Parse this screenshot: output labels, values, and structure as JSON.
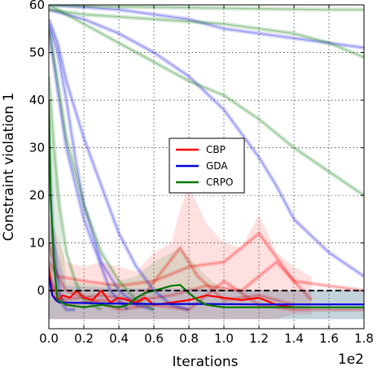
{
  "chart_data": {
    "type": "line",
    "xlabel": "Iterations",
    "ylabel": "Constraint violation 1",
    "x_scale_label": "1e2",
    "xlim": [
      0,
      1.8
    ],
    "ylim": [
      -8,
      60
    ],
    "xticks": [
      "0.0",
      "0.2",
      "0.4",
      "0.6",
      "0.8",
      "1.0",
      "1.2",
      "1.4",
      "1.6",
      "1.8"
    ],
    "yticks": [
      "0",
      "10",
      "20",
      "30",
      "40",
      "50",
      "60"
    ],
    "grid": true,
    "legend_position": "center",
    "reference_line": {
      "y": 0,
      "style": "dashed",
      "color": "#000000"
    },
    "series": [
      {
        "name": "CBP",
        "color": "#ff0000",
        "mean": {
          "x": [
            0,
            0.02,
            0.05,
            0.08,
            0.12,
            0.16,
            0.2,
            0.25,
            0.3,
            0.35,
            0.4,
            0.45,
            0.5,
            0.55,
            0.6,
            0.7,
            0.8,
            0.9,
            1.0,
            1.1,
            1.2,
            1.3,
            1.4
          ],
          "y": [
            5,
            -1,
            -2,
            -1,
            -1.5,
            0,
            -1.5,
            -2,
            0,
            -2.5,
            -1.5,
            -2,
            -2.5,
            -1.5,
            -3,
            -2.5,
            -2,
            -1,
            -1.5,
            -2,
            -1.5,
            -3,
            -3.5
          ]
        },
        "band": {
          "x": [
            0,
            0.1,
            0.2,
            0.3,
            0.4,
            0.5,
            0.6,
            0.7,
            0.75,
            0.8,
            0.9,
            1.0,
            1.1,
            1.2,
            1.3,
            1.4,
            1.5
          ],
          "upper": [
            16,
            6,
            5,
            6,
            5,
            4,
            8,
            10,
            17,
            22,
            14,
            10,
            9,
            16,
            8,
            5,
            3
          ],
          "lower": [
            -6,
            -6,
            -6,
            -6,
            -6,
            -6,
            -6,
            -6,
            -6,
            -6,
            -6,
            -6,
            -6,
            -6,
            -6,
            -5,
            -5
          ]
        },
        "runs": [
          {
            "x": [
              0,
              0.05,
              0.2,
              0.4,
              0.6,
              0.8,
              1.0,
              1.2,
              1.4,
              1.8
            ],
            "y": [
              10,
              3,
              2,
              1,
              2,
              5,
              6,
              12,
              2,
              0
            ]
          },
          {
            "x": [
              0,
              0.05,
              0.3,
              0.5,
              0.7,
              0.9,
              1.1,
              1.3,
              1.5
            ],
            "y": [
              4,
              -2,
              -1,
              -2,
              -1,
              1,
              0,
              6,
              -2
            ]
          },
          {
            "x": [
              0,
              0.1,
              0.3,
              0.5,
              0.75,
              0.85,
              1.0,
              1.2,
              1.4
            ],
            "y": [
              2,
              -3,
              -2,
              -3,
              9,
              3,
              -2,
              -1,
              -3
            ]
          },
          {
            "x": [
              0,
              0.1,
              0.4,
              0.6,
              0.8,
              1.0,
              1.2,
              1.4,
              1.6,
              1.8
            ],
            "y": [
              6,
              0,
              -4,
              -3,
              -4,
              2,
              -3,
              -4,
              -4,
              -4
            ]
          }
        ]
      },
      {
        "name": "GDA",
        "color": "#0000dd",
        "mean": {
          "x": [
            0,
            0.02,
            0.04,
            0.06,
            0.1,
            0.3,
            0.6,
            0.9,
            1.2,
            1.5,
            1.8
          ],
          "y": [
            3,
            -1,
            -2,
            -2.5,
            -2.5,
            -2.7,
            -2.8,
            -2.8,
            -2.9,
            -2.9,
            -2.9
          ]
        },
        "band": {
          "x": [
            0,
            0.1,
            0.4,
            0.8,
            1.2,
            1.6,
            1.8
          ],
          "upper": [
            15,
            1,
            0.5,
            0.5,
            0,
            0,
            0
          ],
          "lower": [
            -6,
            -6,
            -6,
            -6,
            -6,
            -6,
            -6
          ]
        },
        "runs": [
          {
            "x": [
              0,
              0.2,
              0.4,
              0.6,
              0.8,
              1.0,
              1.2,
              1.4,
              1.6,
              1.8
            ],
            "y": [
              60,
              59.5,
              59,
              58,
              57,
              55,
              54,
              53,
              52,
              51
            ]
          },
          {
            "x": [
              0,
              0.2,
              0.4,
              0.6,
              0.8,
              1.0,
              1.2,
              1.3,
              1.4,
              1.6,
              1.8
            ],
            "y": [
              59,
              57,
              54,
              50,
              45,
              38,
              28,
              22,
              15,
              8,
              3
            ]
          },
          {
            "x": [
              0,
              0.05,
              0.1,
              0.2,
              0.3,
              0.4,
              0.5,
              0.6,
              0.7,
              0.8
            ],
            "y": [
              57,
              52,
              44,
              32,
              22,
              12,
              5,
              0,
              -3,
              -4
            ]
          },
          {
            "x": [
              0,
              0.05,
              0.1,
              0.15,
              0.2,
              0.3,
              0.4,
              0.5,
              0.6
            ],
            "y": [
              56,
              50,
              40,
              28,
              18,
              6,
              0,
              -3,
              -4
            ]
          },
          {
            "x": [
              0,
              0.05,
              0.1,
              0.2,
              0.3,
              0.35,
              0.45
            ],
            "y": [
              55,
              42,
              30,
              15,
              5,
              0,
              -4
            ]
          },
          {
            "x": [
              0,
              0.02,
              0.04,
              0.06,
              0.08,
              0.1,
              0.15
            ],
            "y": [
              30,
              15,
              5,
              0,
              -3,
              -4,
              -4
            ]
          }
        ]
      },
      {
        "name": "CRPO",
        "color": "#007700",
        "mean": {
          "x": [
            0,
            0.01,
            0.03,
            0.05,
            0.1,
            0.2,
            0.3,
            0.4,
            0.45,
            0.5,
            0.55,
            0.6,
            0.65,
            0.7,
            0.75,
            0.8,
            0.85,
            0.9,
            1.0,
            1.2,
            1.4,
            1.6,
            1.8
          ],
          "y": [
            40,
            20,
            5,
            -2,
            -3,
            -3.5,
            -3,
            -3.5,
            -3,
            -1.5,
            -0.5,
            0,
            0.5,
            1,
            1.2,
            -0.5,
            -2,
            -3,
            -3.5,
            -3.5,
            -3.5,
            -3.5,
            -3.5
          ]
        },
        "band": {
          "x": [
            0,
            0.1,
            0.3,
            0.5,
            0.6,
            0.7,
            0.75,
            0.8,
            0.9,
            1.0,
            1.2,
            1.5,
            1.8
          ],
          "upper": [
            40,
            2,
            1,
            3,
            6,
            8,
            9,
            7,
            3,
            0,
            0,
            0,
            0
          ],
          "lower": [
            -6,
            -6,
            -6,
            -6,
            -6,
            -6,
            -6,
            -6,
            -6,
            -6,
            -6,
            -6,
            -6
          ]
        },
        "runs": [
          {
            "x": [
              0,
              0.2,
              0.4,
              0.6,
              0.8,
              1.0,
              1.2,
              1.4,
              1.6,
              1.8
            ],
            "y": [
              60,
              59.8,
              59.6,
              59.5,
              59.4,
              59.3,
              59.2,
              59.1,
              59,
              59
            ]
          },
          {
            "x": [
              0,
              0.2,
              0.4,
              0.6,
              0.8,
              1.0,
              1.2,
              1.4,
              1.6,
              1.8
            ],
            "y": [
              59,
              58,
              57.5,
              57,
              56.5,
              56,
              55,
              54,
              52,
              49
            ]
          },
          {
            "x": [
              0,
              0.1,
              0.2,
              0.3,
              0.4,
              0.5,
              0.6,
              0.7,
              0.8,
              1.0,
              1.2,
              1.4,
              1.6,
              1.8
            ],
            "y": [
              60,
              58,
              56,
              54,
              52,
              50,
              48,
              46,
              44,
              41,
              36,
              30,
              25,
              20
            ]
          },
          {
            "x": [
              0,
              0.05,
              0.1,
              0.2,
              0.3,
              0.4,
              0.5,
              0.6
            ],
            "y": [
              55,
              44,
              32,
              18,
              8,
              2,
              -2,
              -4
            ]
          },
          {
            "x": [
              0,
              0.03,
              0.06,
              0.1,
              0.15,
              0.2,
              0.3
            ],
            "y": [
              45,
              30,
              18,
              8,
              2,
              -2,
              -4
            ]
          }
        ]
      }
    ]
  }
}
